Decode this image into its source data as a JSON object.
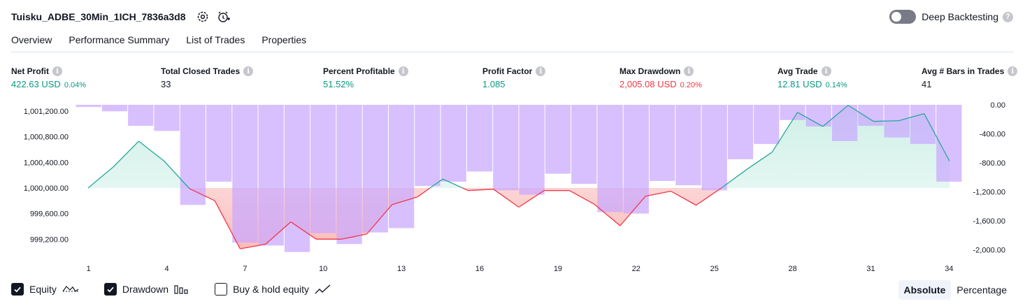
{
  "header": {
    "title": "Tuisku_ADBE_30Min_1ICH_7836a3d8",
    "settings_icon": "gear-icon",
    "alert_icon": "add-alert-clock-icon"
  },
  "deep_backtesting": {
    "label": "Deep Backtesting",
    "enabled": false,
    "help": "?"
  },
  "tabs": [
    {
      "label": "Overview",
      "active": true
    },
    {
      "label": "Performance Summary",
      "active": false
    },
    {
      "label": "List of Trades",
      "active": false
    },
    {
      "label": "Properties",
      "active": false
    }
  ],
  "metrics": {
    "net_profit": {
      "label": "Net Profit",
      "value": "422.63 USD",
      "pct": "0.04%"
    },
    "closed_trades": {
      "label": "Total Closed Trades",
      "value": "33"
    },
    "percent_profitable": {
      "label": "Percent Profitable",
      "value": "51.52%"
    },
    "profit_factor": {
      "label": "Profit Factor",
      "value": "1.085"
    },
    "max_drawdown": {
      "label": "Max Drawdown",
      "value": "2,005.08 USD",
      "pct": "0.20%"
    },
    "avg_trade": {
      "label": "Avg Trade",
      "value": "12.81 USD",
      "pct": "0.14%"
    },
    "avg_bars": {
      "label": "Avg # Bars in Trades",
      "value": "41"
    },
    "info_glyph": "i"
  },
  "chart_data": {
    "type": "line",
    "x": [
      1,
      2,
      3,
      4,
      5,
      6,
      7,
      8,
      9,
      10,
      11,
      12,
      13,
      14,
      15,
      16,
      17,
      18,
      19,
      20,
      21,
      22,
      23,
      24,
      25,
      26,
      27,
      28,
      29,
      30,
      31,
      32,
      33,
      34
    ],
    "x_tick_labels": [
      "1",
      "4",
      "7",
      "10",
      "13",
      "16",
      "19",
      "22",
      "25",
      "28",
      "31",
      "34"
    ],
    "x_ticks": [
      1,
      4,
      7,
      10,
      13,
      16,
      19,
      22,
      25,
      28,
      31,
      34
    ],
    "equity": {
      "baseline": 1000000,
      "values": [
        1000000,
        1000330,
        1000730,
        1000420,
        999990,
        999800,
        999050,
        999120,
        999470,
        999200,
        999200,
        999280,
        999740,
        999860,
        1000140,
        999960,
        999980,
        999700,
        999960,
        999960,
        999740,
        999410,
        999870,
        999950,
        999730,
        1000000,
        1000290,
        1000560,
        1001180,
        1000960,
        1001290,
        1001040,
        1001050,
        1001160,
        1000420
      ],
      "ylim": [
        998920,
        1001320
      ],
      "y_ticks": [
        999200,
        999600,
        1000000,
        1000400,
        1000800,
        1001200
      ],
      "y_tick_labels": [
        "999,200.00",
        "999,600.00",
        "1,000,000.00",
        "1,000,400.00",
        "1,000,800.00",
        "1,001,200.00"
      ]
    },
    "drawdown": {
      "values": [
        -30,
        -90,
        -290,
        -360,
        -1380,
        -1060,
        -1900,
        -1940,
        -2030,
        -1770,
        -1920,
        -1760,
        -1700,
        -1120,
        -1060,
        -920,
        -1180,
        -1240,
        -950,
        -1090,
        -1480,
        -1500,
        -1050,
        -1110,
        -1180,
        -750,
        -540,
        -210,
        -300,
        -500,
        -290,
        -450,
        -540,
        -1060
      ],
      "ylim": [
        -2100,
        0
      ],
      "y_ticks": [
        0,
        -400,
        -800,
        -1200,
        -1600,
        -2000
      ],
      "y_tick_labels": [
        "0.00",
        "-400.00",
        "-800.00",
        "-1,200.00",
        "-1,600.00",
        "-2,000.00"
      ]
    },
    "colors": {
      "equity_up": "#26a69a",
      "equity_down": "#f23645",
      "drawdown_bar": "#c9a8ff",
      "equity_fill_up": "#d6f2ec",
      "equity_fill_down": "#fcd5d5"
    },
    "grid": false
  },
  "legend": {
    "equity": {
      "label": "Equity",
      "checked": true,
      "icon": "equity-wave-icon"
    },
    "drawdown": {
      "label": "Drawdown",
      "checked": true,
      "icon": "bars-icon"
    },
    "buy_hold": {
      "label": "Buy & hold equity",
      "checked": false,
      "icon": "line-trend-icon"
    }
  },
  "view_mode": {
    "absolute": "Absolute",
    "percentage": "Percentage",
    "active": "absolute"
  }
}
